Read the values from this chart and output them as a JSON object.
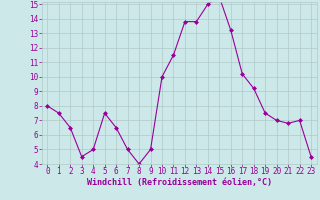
{
  "x": [
    0,
    1,
    2,
    3,
    4,
    5,
    6,
    7,
    8,
    9,
    10,
    11,
    12,
    13,
    14,
    15,
    16,
    17,
    18,
    19,
    20,
    21,
    22,
    23
  ],
  "y": [
    8.0,
    7.5,
    6.5,
    4.5,
    5.0,
    7.5,
    6.5,
    5.0,
    4.0,
    5.0,
    10.0,
    11.5,
    13.8,
    13.8,
    15.0,
    15.5,
    13.2,
    10.2,
    9.2,
    7.5,
    7.0,
    6.8,
    7.0,
    4.5
  ],
  "xlabel": "Windchill (Refroidissement éolien,°C)",
  "ylim": [
    4,
    15
  ],
  "xlim": [
    -0.5,
    23.5
  ],
  "yticks": [
    4,
    5,
    6,
    7,
    8,
    9,
    10,
    11,
    12,
    13,
    14,
    15
  ],
  "xticks": [
    0,
    1,
    2,
    3,
    4,
    5,
    6,
    7,
    8,
    9,
    10,
    11,
    12,
    13,
    14,
    15,
    16,
    17,
    18,
    19,
    20,
    21,
    22,
    23
  ],
  "line_color": "#990099",
  "marker": "D",
  "marker_size": 2.0,
  "bg_color": "#cce8e8",
  "grid_color": "#b0c8c8",
  "xlabel_color": "#990099",
  "tick_color": "#990099",
  "tick_fontsize": 5.5,
  "xlabel_fontsize": 6.0,
  "linewidth": 0.8
}
